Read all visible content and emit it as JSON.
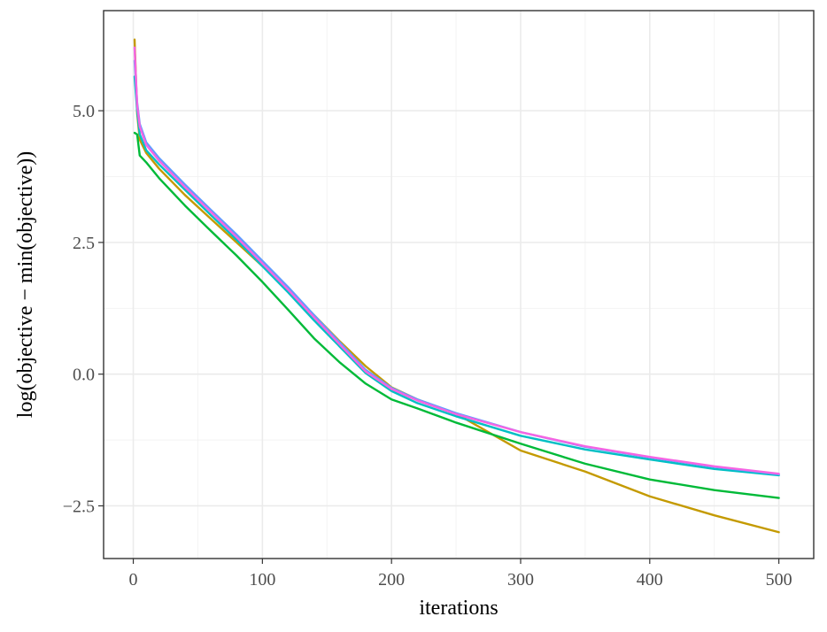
{
  "chart_data": {
    "type": "line",
    "title": "",
    "xlabel": "iterations",
    "ylabel": "log(objective − min(objective))",
    "xlim": [
      -23,
      527
    ],
    "ylim": [
      -3.5,
      6.9
    ],
    "x_ticks": [
      0,
      100,
      200,
      300,
      400,
      500
    ],
    "x_tick_labels": [
      "0",
      "100",
      "200",
      "300",
      "400",
      "500"
    ],
    "y_ticks": [
      -2.5,
      0.0,
      2.5,
      5.0
    ],
    "y_tick_labels": [
      "−2.5",
      "0.0",
      "2.5",
      "5.0"
    ],
    "x_minor_ticks": [
      50,
      150,
      250,
      350,
      450
    ],
    "y_minor_ticks": [
      -1.25,
      1.25,
      3.75
    ],
    "grid": true,
    "legend": "none",
    "series": [
      {
        "color": "#C49A00",
        "points": [
          [
            1,
            6.35
          ],
          [
            3,
            4.95
          ],
          [
            5,
            4.45
          ],
          [
            10,
            4.2
          ],
          [
            20,
            3.9
          ],
          [
            40,
            3.4
          ],
          [
            60,
            2.95
          ],
          [
            80,
            2.5
          ],
          [
            100,
            2.05
          ],
          [
            120,
            1.6
          ],
          [
            140,
            1.12
          ],
          [
            160,
            0.62
          ],
          [
            180,
            0.15
          ],
          [
            200,
            -0.25
          ],
          [
            220,
            -0.48
          ],
          [
            250,
            -0.75
          ],
          [
            300,
            -1.45
          ],
          [
            350,
            -1.85
          ],
          [
            400,
            -2.32
          ],
          [
            450,
            -2.68
          ],
          [
            500,
            -3.0
          ]
        ]
      },
      {
        "color": "#00BA38",
        "points": [
          [
            1,
            4.58
          ],
          [
            3,
            4.55
          ],
          [
            5,
            4.15
          ],
          [
            10,
            4.02
          ],
          [
            20,
            3.72
          ],
          [
            40,
            3.2
          ],
          [
            60,
            2.72
          ],
          [
            80,
            2.25
          ],
          [
            100,
            1.75
          ],
          [
            120,
            1.22
          ],
          [
            140,
            0.68
          ],
          [
            160,
            0.22
          ],
          [
            180,
            -0.18
          ],
          [
            200,
            -0.48
          ],
          [
            220,
            -0.65
          ],
          [
            250,
            -0.92
          ],
          [
            300,
            -1.32
          ],
          [
            350,
            -1.7
          ],
          [
            400,
            -2.0
          ],
          [
            450,
            -2.2
          ],
          [
            500,
            -2.35
          ]
        ]
      },
      {
        "color": "#00BFC4",
        "points": [
          [
            1,
            5.65
          ],
          [
            3,
            5.0
          ],
          [
            5,
            4.55
          ],
          [
            10,
            4.25
          ],
          [
            20,
            3.98
          ],
          [
            40,
            3.5
          ],
          [
            60,
            3.02
          ],
          [
            80,
            2.55
          ],
          [
            100,
            2.05
          ],
          [
            120,
            1.55
          ],
          [
            140,
            1.02
          ],
          [
            160,
            0.52
          ],
          [
            180,
            0.02
          ],
          [
            200,
            -0.32
          ],
          [
            220,
            -0.55
          ],
          [
            250,
            -0.8
          ],
          [
            300,
            -1.17
          ],
          [
            350,
            -1.43
          ],
          [
            400,
            -1.62
          ],
          [
            450,
            -1.8
          ],
          [
            500,
            -1.92
          ]
        ]
      },
      {
        "color": "#619CFF",
        "points": [
          [
            1,
            5.95
          ],
          [
            3,
            5.15
          ],
          [
            5,
            4.75
          ],
          [
            10,
            4.4
          ],
          [
            20,
            4.1
          ],
          [
            40,
            3.6
          ],
          [
            60,
            3.12
          ],
          [
            80,
            2.65
          ],
          [
            100,
            2.15
          ],
          [
            120,
            1.65
          ],
          [
            140,
            1.12
          ],
          [
            160,
            0.6
          ],
          [
            180,
            0.08
          ],
          [
            200,
            -0.26
          ],
          [
            220,
            -0.48
          ],
          [
            250,
            -0.74
          ],
          [
            300,
            -1.1
          ],
          [
            350,
            -1.38
          ],
          [
            400,
            -1.58
          ],
          [
            450,
            -1.76
          ],
          [
            500,
            -1.9
          ]
        ]
      },
      {
        "color": "#F564E3",
        "points": [
          [
            1,
            6.2
          ],
          [
            3,
            5.1
          ],
          [
            5,
            4.7
          ],
          [
            10,
            4.35
          ],
          [
            20,
            4.05
          ],
          [
            40,
            3.55
          ],
          [
            60,
            3.08
          ],
          [
            80,
            2.6
          ],
          [
            100,
            2.1
          ],
          [
            120,
            1.6
          ],
          [
            140,
            1.08
          ],
          [
            160,
            0.56
          ],
          [
            180,
            0.05
          ],
          [
            200,
            -0.28
          ],
          [
            220,
            -0.5
          ],
          [
            250,
            -0.76
          ],
          [
            300,
            -1.1
          ],
          [
            350,
            -1.37
          ],
          [
            400,
            -1.57
          ],
          [
            450,
            -1.75
          ],
          [
            500,
            -1.89
          ]
        ]
      }
    ]
  }
}
